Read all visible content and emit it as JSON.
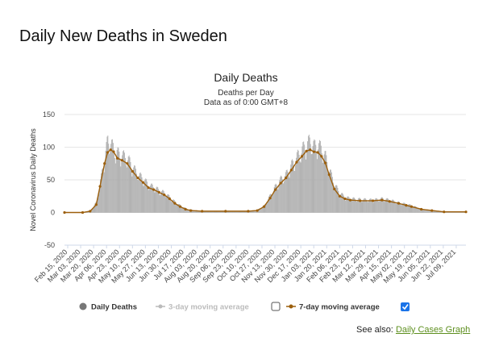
{
  "page": {
    "heading": "Daily New Deaths in Sweden",
    "see_also_prefix": "See also:",
    "see_also_link": "Daily Cases Graph"
  },
  "colors": {
    "bars": "#a8a8a8",
    "avg_line": "#9c5f0c",
    "legend_inactive": "#bbbbbb",
    "grid": "#e6e6e6",
    "zero_line": "#cccccc",
    "axis": "#cfd8e8",
    "link": "#5d8f1e",
    "checkbox": "#1a73e8"
  },
  "chart_data": {
    "type": "bar",
    "title": "Daily Deaths",
    "subtitle_1": "Deaths per Day",
    "subtitle_2": "Data as of 0:00 GMT+8",
    "ylabel": "Novel Coronavirus Daily Deaths",
    "ylim": [
      -50,
      150
    ],
    "yticks": [
      150,
      100,
      50,
      0,
      -50
    ],
    "grid": true,
    "legend_position": "bottom",
    "x_range": [
      "2020-02-15",
      "2021-07-30"
    ],
    "x_tick_labels": [
      "Feb 15, 2020",
      "Mar 03, 2020",
      "Mar 20, 2020",
      "Apr 06, 2020",
      "Apr 23, 2020",
      "May 10, 2020",
      "May 27, 2020",
      "Jun 13, 2020",
      "Jun 30, 2020",
      "Jul 17, 2020",
      "Aug 03, 2020",
      "Aug 20, 2020",
      "Sep 06, 2020",
      "Sep 23, 2020",
      "Oct 10, 2020",
      "Oct 27, 2020",
      "Nov 13, 2020",
      "Nov 30, 2020",
      "Dec 17, 2020",
      "Jan 03, 2021",
      "Jan 20, 2021",
      "Feb 06, 2021",
      "Feb 23, 2021",
      "Mar 12, 2021",
      "Mar 29, 2021",
      "Apr 15, 2021",
      "May 02, 2021",
      "May 19, 2021",
      "Jun 05, 2021",
      "Jun 22, 2021",
      "Jul 09, 2021"
    ],
    "series": [
      {
        "name": "Daily Deaths",
        "kind": "bar",
        "points": [
          [
            "2020-02-15",
            0
          ],
          [
            "2020-03-10",
            0
          ],
          [
            "2020-03-20",
            3
          ],
          [
            "2020-03-28",
            15
          ],
          [
            "2020-04-02",
            45
          ],
          [
            "2020-04-08",
            80
          ],
          [
            "2020-04-12",
            105
          ],
          [
            "2020-04-16",
            100
          ],
          [
            "2020-04-20",
            90
          ],
          [
            "2020-04-25",
            85
          ],
          [
            "2020-05-01",
            82
          ],
          [
            "2020-05-08",
            78
          ],
          [
            "2020-05-15",
            65
          ],
          [
            "2020-05-22",
            55
          ],
          [
            "2020-05-29",
            48
          ],
          [
            "2020-06-05",
            40
          ],
          [
            "2020-06-12",
            36
          ],
          [
            "2020-06-19",
            32
          ],
          [
            "2020-06-26",
            28
          ],
          [
            "2020-07-03",
            22
          ],
          [
            "2020-07-10",
            15
          ],
          [
            "2020-07-17",
            10
          ],
          [
            "2020-07-24",
            6
          ],
          [
            "2020-07-31",
            4
          ],
          [
            "2020-08-15",
            2
          ],
          [
            "2020-09-15",
            2
          ],
          [
            "2020-10-15",
            2
          ],
          [
            "2020-10-27",
            4
          ],
          [
            "2020-11-05",
            10
          ],
          [
            "2020-11-13",
            25
          ],
          [
            "2020-11-20",
            38
          ],
          [
            "2020-11-27",
            48
          ],
          [
            "2020-12-04",
            55
          ],
          [
            "2020-12-11",
            68
          ],
          [
            "2020-12-18",
            80
          ],
          [
            "2020-12-25",
            90
          ],
          [
            "2020-12-31",
            100
          ],
          [
            "2021-01-05",
            102
          ],
          [
            "2021-01-10",
            95
          ],
          [
            "2021-01-15",
            98
          ],
          [
            "2021-01-20",
            90
          ],
          [
            "2021-01-25",
            80
          ],
          [
            "2021-01-30",
            62
          ],
          [
            "2021-02-06",
            40
          ],
          [
            "2021-02-13",
            28
          ],
          [
            "2021-02-20",
            22
          ],
          [
            "2021-02-27",
            20
          ],
          [
            "2021-03-12",
            19
          ],
          [
            "2021-03-29",
            18
          ],
          [
            "2021-04-10",
            20
          ],
          [
            "2021-04-20",
            18
          ],
          [
            "2021-05-02",
            14
          ],
          [
            "2021-05-12",
            12
          ],
          [
            "2021-05-19",
            10
          ],
          [
            "2021-06-01",
            5
          ],
          [
            "2021-06-15",
            3
          ],
          [
            "2021-07-01",
            1
          ],
          [
            "2021-07-30",
            1
          ]
        ]
      },
      {
        "name": "3-day moving average",
        "kind": "line",
        "enabled": false
      },
      {
        "name": "7-day moving average",
        "kind": "line",
        "enabled": true,
        "points": [
          [
            "2020-02-15",
            0
          ],
          [
            "2020-03-10",
            0
          ],
          [
            "2020-03-20",
            2
          ],
          [
            "2020-03-28",
            12
          ],
          [
            "2020-04-02",
            40
          ],
          [
            "2020-04-08",
            75
          ],
          [
            "2020-04-12",
            92
          ],
          [
            "2020-04-16",
            96
          ],
          [
            "2020-04-20",
            93
          ],
          [
            "2020-04-25",
            83
          ],
          [
            "2020-05-01",
            80
          ],
          [
            "2020-05-08",
            75
          ],
          [
            "2020-05-15",
            63
          ],
          [
            "2020-05-22",
            53
          ],
          [
            "2020-05-29",
            46
          ],
          [
            "2020-06-05",
            38
          ],
          [
            "2020-06-12",
            35
          ],
          [
            "2020-06-19",
            31
          ],
          [
            "2020-06-26",
            27
          ],
          [
            "2020-07-03",
            21
          ],
          [
            "2020-07-10",
            14
          ],
          [
            "2020-07-17",
            9
          ],
          [
            "2020-07-24",
            5
          ],
          [
            "2020-07-31",
            3
          ],
          [
            "2020-08-15",
            2
          ],
          [
            "2020-09-15",
            2
          ],
          [
            "2020-10-15",
            2
          ],
          [
            "2020-10-27",
            3
          ],
          [
            "2020-11-05",
            9
          ],
          [
            "2020-11-13",
            22
          ],
          [
            "2020-11-20",
            35
          ],
          [
            "2020-11-27",
            45
          ],
          [
            "2020-12-04",
            53
          ],
          [
            "2020-12-11",
            65
          ],
          [
            "2020-12-18",
            77
          ],
          [
            "2020-12-25",
            86
          ],
          [
            "2020-12-31",
            94
          ],
          [
            "2021-01-05",
            96
          ],
          [
            "2021-01-10",
            93
          ],
          [
            "2021-01-15",
            92
          ],
          [
            "2021-01-20",
            86
          ],
          [
            "2021-01-25",
            76
          ],
          [
            "2021-01-30",
            58
          ],
          [
            "2021-02-06",
            36
          ],
          [
            "2021-02-13",
            25
          ],
          [
            "2021-02-20",
            21
          ],
          [
            "2021-02-27",
            19
          ],
          [
            "2021-03-12",
            18
          ],
          [
            "2021-03-29",
            18
          ],
          [
            "2021-04-10",
            19
          ],
          [
            "2021-04-20",
            17
          ],
          [
            "2021-05-02",
            14
          ],
          [
            "2021-05-12",
            11
          ],
          [
            "2021-05-19",
            9
          ],
          [
            "2021-06-01",
            5
          ],
          [
            "2021-06-15",
            3
          ],
          [
            "2021-07-01",
            1
          ],
          [
            "2021-07-30",
            1
          ]
        ]
      }
    ]
  }
}
